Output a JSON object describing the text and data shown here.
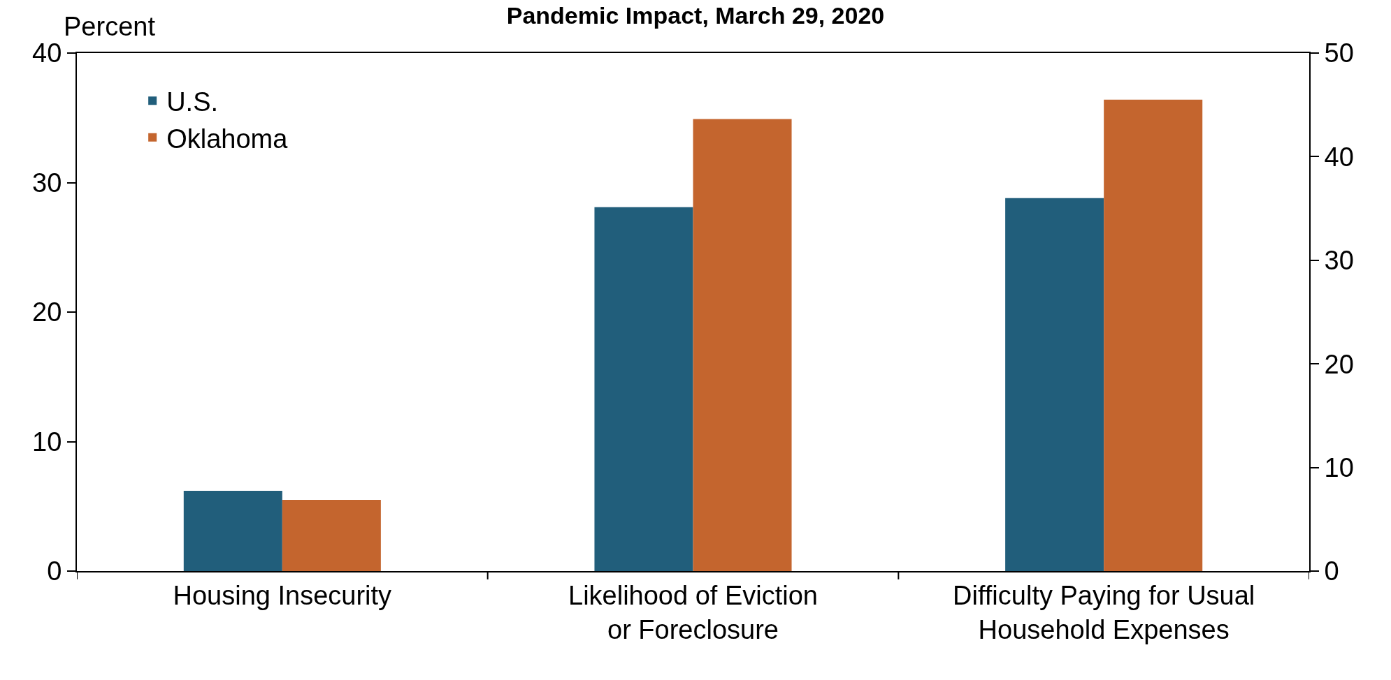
{
  "chart_data": {
    "type": "bar",
    "title": "Pandemic Impact, March 29, 2020",
    "ylabel": "Percent",
    "categories": [
      "Housing Insecurity",
      "Likelihood of Eviction\nor Foreclosure",
      "Difficulty Paying for Usual\nHousehold Expenses"
    ],
    "series": [
      {
        "name": "U.S.",
        "color": "#215e7b",
        "values": [
          6.2,
          28.1,
          28.8
        ]
      },
      {
        "name": "Oklahoma",
        "color": "#c4652e",
        "values": [
          5.5,
          34.9,
          36.4
        ]
      }
    ],
    "ylim": [
      0,
      40
    ],
    "yticks": [
      0,
      10,
      20,
      30,
      40
    ],
    "y2lim": [
      0,
      50
    ],
    "y2ticks": [
      0,
      10,
      20,
      30,
      40,
      50
    ],
    "grid": false,
    "legend": "top left"
  }
}
